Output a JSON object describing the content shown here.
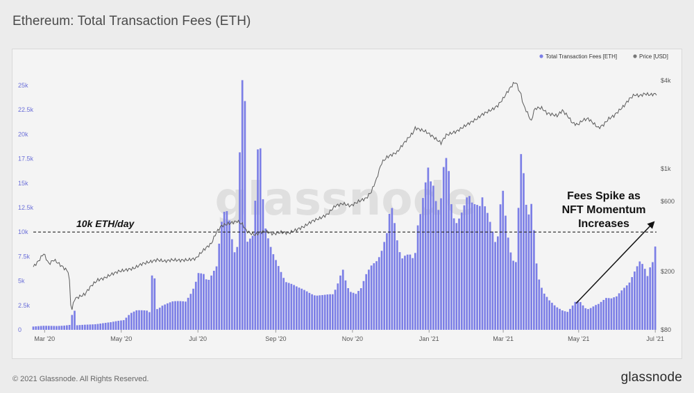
{
  "header": {
    "title": "Ethereum: Total Transaction Fees (ETH)"
  },
  "footer": {
    "copyright": "© 2021 Glassnode. All Rights Reserved.",
    "brand": "glassnode"
  },
  "watermark": "glassnode",
  "colors": {
    "bars": "#7b7ee6",
    "price_line": "#5a5a5a",
    "background": "#f4f4f4",
    "annotation": "#111111"
  },
  "chart_data": {
    "type": "bar",
    "title": "Ethereum: Total Transaction Fees (ETH)",
    "legend": {
      "placement": "top-right",
      "items": [
        {
          "label": "Total Transaction Fees [ETH]",
          "color": "#7b7ee6"
        },
        {
          "label": "Price [USD]",
          "color": "#777777"
        }
      ]
    },
    "x_ticks": [
      "Mar '20",
      "May '20",
      "Jul '20",
      "Sep '20",
      "Nov '20",
      "Jan '21",
      "Mar '21",
      "May '21",
      "Jul '21"
    ],
    "y_left": {
      "ticks": [
        0,
        2500,
        5000,
        7500,
        10000,
        12500,
        15000,
        17500,
        20000,
        22500,
        25000
      ],
      "tick_labels": [
        "0",
        "2.5k",
        "5k",
        "7.5k",
        "10k",
        "12.5k",
        "15k",
        "17.5k",
        "20k",
        "22.5k",
        "25k"
      ],
      "range": [
        0,
        25500
      ]
    },
    "y_right": {
      "scale": "log",
      "ticks": [
        80,
        200,
        600,
        1000,
        4000
      ],
      "tick_labels": [
        "$80",
        "$200",
        "$600",
        "$1k",
        "$4k"
      ],
      "range": [
        80,
        4000
      ]
    },
    "series": [
      {
        "name": "Total Transaction Fees [ETH]",
        "type": "bar",
        "points": [
          [
            0,
            350
          ],
          [
            8,
            400
          ],
          [
            18,
            380
          ],
          [
            22,
            420
          ],
          [
            28,
            500
          ],
          [
            30,
            1500
          ],
          [
            32,
            1900
          ],
          [
            34,
            450
          ],
          [
            45,
            550
          ],
          [
            60,
            750
          ],
          [
            70,
            1000
          ],
          [
            75,
            1700
          ],
          [
            80,
            1950
          ],
          [
            88,
            1900
          ],
          [
            91,
            1700
          ],
          [
            92,
            5500
          ],
          [
            94,
            5300
          ],
          [
            95,
            2100
          ],
          [
            100,
            2500
          ],
          [
            108,
            2800
          ],
          [
            118,
            2900
          ],
          [
            125,
            4500
          ],
          [
            128,
            5700
          ],
          [
            132,
            5500
          ],
          [
            135,
            4700
          ],
          [
            138,
            5400
          ],
          [
            142,
            6500
          ],
          [
            146,
            11500
          ],
          [
            149,
            12700
          ],
          [
            152,
            11000
          ],
          [
            155,
            8000
          ],
          [
            157,
            7300
          ],
          [
            159,
            9000
          ],
          [
            160,
            17500
          ],
          [
            162,
            24800
          ],
          [
            163,
            25500
          ],
          [
            164,
            23000
          ],
          [
            165,
            15000
          ],
          [
            166,
            9000
          ],
          [
            168,
            9500
          ],
          [
            170,
            10000
          ],
          [
            172,
            13500
          ],
          [
            174,
            18500
          ],
          [
            175,
            18800
          ],
          [
            177,
            17800
          ],
          [
            178,
            13000
          ],
          [
            180,
            10000
          ],
          [
            183,
            8500
          ],
          [
            186,
            7500
          ],
          [
            190,
            6500
          ],
          [
            196,
            5000
          ],
          [
            205,
            4200
          ],
          [
            215,
            3700
          ],
          [
            225,
            3500
          ],
          [
            232,
            3500
          ],
          [
            235,
            4200
          ],
          [
            238,
            5500
          ],
          [
            240,
            6200
          ],
          [
            242,
            5200
          ],
          [
            245,
            4000
          ],
          [
            250,
            3600
          ],
          [
            254,
            4100
          ],
          [
            258,
            5500
          ],
          [
            262,
            6500
          ],
          [
            266,
            7200
          ],
          [
            270,
            8200
          ],
          [
            274,
            9700
          ],
          [
            276,
            11500
          ],
          [
            278,
            12000
          ],
          [
            280,
            10500
          ],
          [
            283,
            8000
          ],
          [
            286,
            7200
          ],
          [
            289,
            7800
          ],
          [
            292,
            8000
          ],
          [
            295,
            7200
          ],
          [
            297,
            8500
          ],
          [
            298,
            10500
          ],
          [
            300,
            11500
          ],
          [
            302,
            13000
          ],
          [
            304,
            14500
          ],
          [
            306,
            16000
          ],
          [
            307,
            14000
          ],
          [
            309,
            15500
          ],
          [
            311,
            13500
          ],
          [
            314,
            12500
          ],
          [
            316,
            14000
          ],
          [
            318,
            17000
          ],
          [
            319,
            18200
          ],
          [
            321,
            17000
          ],
          [
            323,
            15000
          ],
          [
            324,
            12500
          ],
          [
            326,
            11000
          ],
          [
            328,
            10500
          ],
          [
            331,
            11200
          ],
          [
            334,
            12500
          ],
          [
            336,
            13500
          ],
          [
            338,
            13900
          ],
          [
            340,
            13500
          ],
          [
            343,
            13000
          ],
          [
            346,
            12500
          ],
          [
            348,
            13200
          ],
          [
            350,
            12200
          ],
          [
            352,
            11500
          ],
          [
            355,
            10200
          ],
          [
            358,
            8800
          ],
          [
            360,
            9500
          ],
          [
            361,
            11500
          ],
          [
            363,
            14500
          ],
          [
            364,
            14700
          ],
          [
            366,
            12000
          ],
          [
            368,
            9500
          ],
          [
            371,
            7000
          ],
          [
            374,
            6700
          ],
          [
            376,
            12000
          ],
          [
            377,
            15000
          ],
          [
            378,
            17300
          ],
          [
            379,
            16900
          ],
          [
            380,
            15500
          ],
          [
            382,
            12500
          ],
          [
            384,
            11700
          ],
          [
            386,
            13000
          ],
          [
            388,
            10500
          ],
          [
            390,
            7000
          ],
          [
            392,
            5200
          ],
          [
            395,
            3800
          ],
          [
            400,
            2900
          ],
          [
            405,
            2300
          ],
          [
            410,
            2000
          ],
          [
            414,
            1900
          ],
          [
            417,
            2300
          ],
          [
            420,
            2800
          ],
          [
            423,
            2900
          ],
          [
            426,
            2400
          ],
          [
            429,
            2000
          ],
          [
            432,
            2200
          ],
          [
            436,
            2600
          ],
          [
            440,
            2900
          ],
          [
            444,
            3200
          ],
          [
            448,
            3100
          ],
          [
            452,
            3300
          ],
          [
            455,
            3800
          ],
          [
            458,
            4300
          ],
          [
            461,
            4800
          ],
          [
            464,
            5500
          ],
          [
            467,
            6200
          ],
          [
            470,
            6800
          ],
          [
            472,
            6500
          ],
          [
            474,
            6000
          ],
          [
            476,
            5300
          ],
          [
            478,
            6200
          ],
          [
            480,
            6800
          ],
          [
            482,
            8500
          ],
          [
            483,
            10000
          ]
        ]
      },
      {
        "name": "Price [USD]",
        "type": "line",
        "points": [
          [
            0,
            215
          ],
          [
            4,
            235
          ],
          [
            8,
            265
          ],
          [
            12,
            225
          ],
          [
            16,
            240
          ],
          [
            20,
            225
          ],
          [
            24,
            210
          ],
          [
            27,
            200
          ],
          [
            28,
            170
          ],
          [
            29,
            120
          ],
          [
            30,
            110
          ],
          [
            32,
            130
          ],
          [
            36,
            135
          ],
          [
            40,
            140
          ],
          [
            45,
            160
          ],
          [
            50,
            175
          ],
          [
            55,
            180
          ],
          [
            60,
            190
          ],
          [
            66,
            200
          ],
          [
            72,
            205
          ],
          [
            78,
            210
          ],
          [
            84,
            225
          ],
          [
            90,
            232
          ],
          [
            96,
            240
          ],
          [
            102,
            235
          ],
          [
            108,
            240
          ],
          [
            114,
            238
          ],
          [
            120,
            240
          ],
          [
            126,
            245
          ],
          [
            132,
            280
          ],
          [
            138,
            310
          ],
          [
            142,
            370
          ],
          [
            146,
            410
          ],
          [
            150,
            420
          ],
          [
            154,
            430
          ],
          [
            158,
            440
          ],
          [
            162,
            420
          ],
          [
            165,
            380
          ],
          [
            168,
            365
          ],
          [
            172,
            355
          ],
          [
            176,
            370
          ],
          [
            180,
            375
          ],
          [
            186,
            360
          ],
          [
            192,
            370
          ],
          [
            198,
            365
          ],
          [
            204,
            385
          ],
          [
            210,
            405
          ],
          [
            216,
            440
          ],
          [
            222,
            460
          ],
          [
            228,
            490
          ],
          [
            234,
            560
          ],
          [
            240,
            580
          ],
          [
            246,
            560
          ],
          [
            252,
            600
          ],
          [
            258,
            630
          ],
          [
            262,
            700
          ],
          [
            266,
            850
          ],
          [
            270,
            1100
          ],
          [
            274,
            1200
          ],
          [
            278,
            1250
          ],
          [
            282,
            1300
          ],
          [
            286,
            1450
          ],
          [
            290,
            1600
          ],
          [
            294,
            1750
          ],
          [
            296,
            1900
          ],
          [
            300,
            1850
          ],
          [
            304,
            1800
          ],
          [
            308,
            1700
          ],
          [
            312,
            1600
          ],
          [
            316,
            1500
          ],
          [
            320,
            1700
          ],
          [
            324,
            1750
          ],
          [
            328,
            1800
          ],
          [
            332,
            1900
          ],
          [
            336,
            2000
          ],
          [
            340,
            2100
          ],
          [
            344,
            2200
          ],
          [
            348,
            2350
          ],
          [
            352,
            2450
          ],
          [
            356,
            2550
          ],
          [
            360,
            2700
          ],
          [
            364,
            3000
          ],
          [
            368,
            3400
          ],
          [
            372,
            3800
          ],
          [
            374,
            3900
          ],
          [
            376,
            3500
          ],
          [
            378,
            3200
          ],
          [
            380,
            2700
          ],
          [
            382,
            2500
          ],
          [
            384,
            2300
          ],
          [
            386,
            2100
          ],
          [
            388,
            2500
          ],
          [
            390,
            2600
          ],
          [
            394,
            2600
          ],
          [
            398,
            2400
          ],
          [
            402,
            2350
          ],
          [
            406,
            2300
          ],
          [
            410,
            2500
          ],
          [
            414,
            2300
          ],
          [
            418,
            2050
          ],
          [
            422,
            2000
          ],
          [
            426,
            2150
          ],
          [
            430,
            2200
          ],
          [
            434,
            2050
          ],
          [
            438,
            1900
          ],
          [
            442,
            2000
          ],
          [
            446,
            2200
          ],
          [
            450,
            2300
          ],
          [
            454,
            2500
          ],
          [
            458,
            2700
          ],
          [
            462,
            3000
          ],
          [
            466,
            3200
          ],
          [
            470,
            3150
          ],
          [
            474,
            3250
          ],
          [
            478,
            3200
          ],
          [
            483,
            3250
          ]
        ]
      }
    ],
    "reference_line": {
      "value": 10000,
      "label": "10k ETH/day",
      "style": "dashed"
    },
    "annotations": [
      {
        "text_lines": [
          "Fees Spike as",
          "NFT Momentum",
          "Increases"
        ],
        "arrow": true
      }
    ]
  }
}
